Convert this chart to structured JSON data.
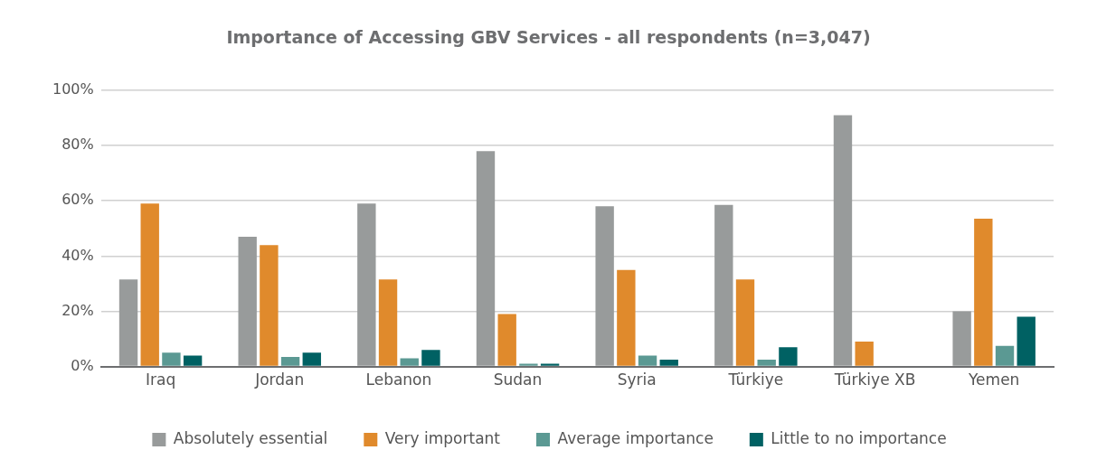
{
  "chart_data": {
    "type": "bar",
    "title": "Importance of Accessing GBV Services - all respondents (n=3,047)",
    "categories": [
      "Iraq",
      "Jordan",
      "Lebanon",
      "Sudan",
      "Syria",
      "Türkiye",
      "Türkiye XB",
      "Yemen"
    ],
    "series": [
      {
        "name": "Absolutely essential",
        "color": "#989b9b",
        "values": [
          31.5,
          47,
          59,
          78,
          58,
          58.5,
          91,
          20
        ]
      },
      {
        "name": "Very important",
        "color": "#e08a2c",
        "values": [
          59,
          44,
          31.5,
          19,
          35,
          31.5,
          9,
          53.5
        ]
      },
      {
        "name": "Average importance",
        "color": "#5b9993",
        "values": [
          5,
          3.5,
          3,
          1,
          4,
          2.5,
          0,
          7.5
        ]
      },
      {
        "name": "Little to no importance",
        "color": "#006163",
        "values": [
          4,
          5,
          6,
          1,
          2.5,
          7,
          0,
          18
        ]
      }
    ],
    "ylim": [
      0,
      100
    ],
    "yticks": [
      {
        "value": 0,
        "label": "0%"
      },
      {
        "value": 20,
        "label": "20%"
      },
      {
        "value": 40,
        "label": "40%"
      },
      {
        "value": 60,
        "label": "60%"
      },
      {
        "value": 80,
        "label": "80%"
      },
      {
        "value": 100,
        "label": "100%"
      }
    ],
    "grid": "y",
    "legend": "bottom"
  }
}
